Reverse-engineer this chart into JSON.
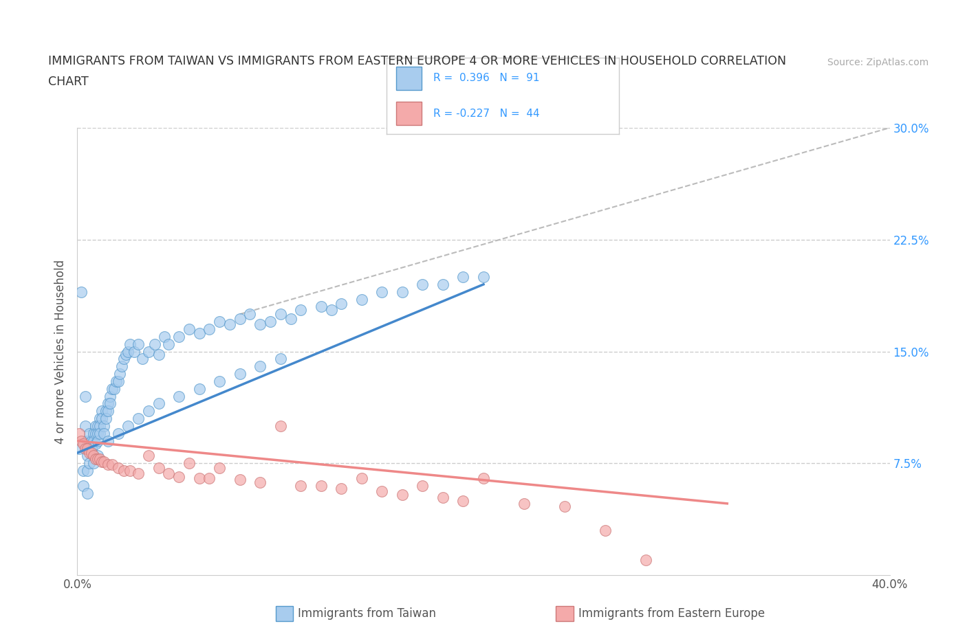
{
  "title_line1": "IMMIGRANTS FROM TAIWAN VS IMMIGRANTS FROM EASTERN EUROPE 4 OR MORE VEHICLES IN HOUSEHOLD CORRELATION",
  "title_line2": "CHART",
  "source": "Source: ZipAtlas.com",
  "ylabel": "4 or more Vehicles in Household",
  "xlabel_taiwan": "Immigrants from Taiwan",
  "xlabel_eastern": "Immigrants from Eastern Europe",
  "xlim": [
    0.0,
    0.4
  ],
  "ylim": [
    0.0,
    0.3
  ],
  "xticks": [
    0.0,
    0.1,
    0.2,
    0.3,
    0.4
  ],
  "yticks": [
    0.0,
    0.075,
    0.15,
    0.225,
    0.3
  ],
  "yticklabels_right": [
    "",
    "7.5%",
    "15.0%",
    "22.5%",
    "30.0%"
  ],
  "taiwan_R": 0.396,
  "taiwan_N": 91,
  "eastern_R": -0.227,
  "eastern_N": 44,
  "blue_fill": "#a8ccee",
  "blue_edge": "#5599cc",
  "pink_fill": "#f4aaaa",
  "pink_edge": "#cc7777",
  "blue_line": "#4488cc",
  "pink_line": "#ee8888",
  "gray_dashed": "#bbbbbb",
  "background": "#ffffff",
  "grid_color": "#cccccc",
  "title_color": "#333333",
  "right_tick_color": "#3399ff",
  "taiwan_x": [
    0.001,
    0.002,
    0.003,
    0.003,
    0.004,
    0.004,
    0.005,
    0.005,
    0.005,
    0.006,
    0.006,
    0.006,
    0.007,
    0.007,
    0.008,
    0.008,
    0.009,
    0.009,
    0.009,
    0.01,
    0.01,
    0.01,
    0.011,
    0.011,
    0.011,
    0.012,
    0.012,
    0.013,
    0.013,
    0.014,
    0.014,
    0.015,
    0.015,
    0.016,
    0.016,
    0.017,
    0.018,
    0.019,
    0.02,
    0.021,
    0.022,
    0.023,
    0.024,
    0.025,
    0.026,
    0.028,
    0.03,
    0.032,
    0.035,
    0.038,
    0.04,
    0.043,
    0.045,
    0.05,
    0.055,
    0.06,
    0.065,
    0.07,
    0.075,
    0.08,
    0.085,
    0.09,
    0.095,
    0.1,
    0.105,
    0.11,
    0.12,
    0.125,
    0.13,
    0.14,
    0.15,
    0.16,
    0.17,
    0.18,
    0.19,
    0.2,
    0.005,
    0.008,
    0.01,
    0.015,
    0.02,
    0.025,
    0.03,
    0.035,
    0.04,
    0.05,
    0.06,
    0.07,
    0.08,
    0.09,
    0.1
  ],
  "taiwan_y": [
    0.085,
    0.19,
    0.07,
    0.06,
    0.12,
    0.1,
    0.09,
    0.08,
    0.07,
    0.095,
    0.085,
    0.075,
    0.09,
    0.085,
    0.095,
    0.09,
    0.1,
    0.095,
    0.088,
    0.1,
    0.095,
    0.09,
    0.105,
    0.1,
    0.095,
    0.11,
    0.105,
    0.1,
    0.095,
    0.11,
    0.105,
    0.115,
    0.11,
    0.12,
    0.115,
    0.125,
    0.125,
    0.13,
    0.13,
    0.135,
    0.14,
    0.145,
    0.148,
    0.15,
    0.155,
    0.15,
    0.155,
    0.145,
    0.15,
    0.155,
    0.148,
    0.16,
    0.155,
    0.16,
    0.165,
    0.162,
    0.165,
    0.17,
    0.168,
    0.172,
    0.175,
    0.168,
    0.17,
    0.175,
    0.172,
    0.178,
    0.18,
    0.178,
    0.182,
    0.185,
    0.19,
    0.19,
    0.195,
    0.195,
    0.2,
    0.2,
    0.055,
    0.075,
    0.08,
    0.09,
    0.095,
    0.1,
    0.105,
    0.11,
    0.115,
    0.12,
    0.125,
    0.13,
    0.135,
    0.14,
    0.145
  ],
  "eastern_x": [
    0.001,
    0.002,
    0.003,
    0.004,
    0.005,
    0.006,
    0.007,
    0.008,
    0.009,
    0.01,
    0.011,
    0.012,
    0.013,
    0.015,
    0.017,
    0.02,
    0.023,
    0.026,
    0.03,
    0.035,
    0.04,
    0.045,
    0.05,
    0.055,
    0.06,
    0.065,
    0.07,
    0.08,
    0.09,
    0.1,
    0.11,
    0.12,
    0.13,
    0.14,
    0.15,
    0.16,
    0.17,
    0.18,
    0.19,
    0.2,
    0.22,
    0.24,
    0.26,
    0.28
  ],
  "eastern_y": [
    0.095,
    0.09,
    0.088,
    0.085,
    0.085,
    0.082,
    0.082,
    0.08,
    0.078,
    0.078,
    0.078,
    0.076,
    0.076,
    0.074,
    0.074,
    0.072,
    0.07,
    0.07,
    0.068,
    0.08,
    0.072,
    0.068,
    0.066,
    0.075,
    0.065,
    0.065,
    0.072,
    0.064,
    0.062,
    0.1,
    0.06,
    0.06,
    0.058,
    0.065,
    0.056,
    0.054,
    0.06,
    0.052,
    0.05,
    0.065,
    0.048,
    0.046,
    0.03,
    0.01
  ],
  "tw_trend_x": [
    0.0,
    0.2
  ],
  "tw_trend_y": [
    0.082,
    0.195
  ],
  "ea_trend_x": [
    0.0,
    0.32
  ],
  "ea_trend_y": [
    0.09,
    0.048
  ],
  "gray_x": [
    0.08,
    0.4
  ],
  "gray_y": [
    0.175,
    0.3
  ]
}
